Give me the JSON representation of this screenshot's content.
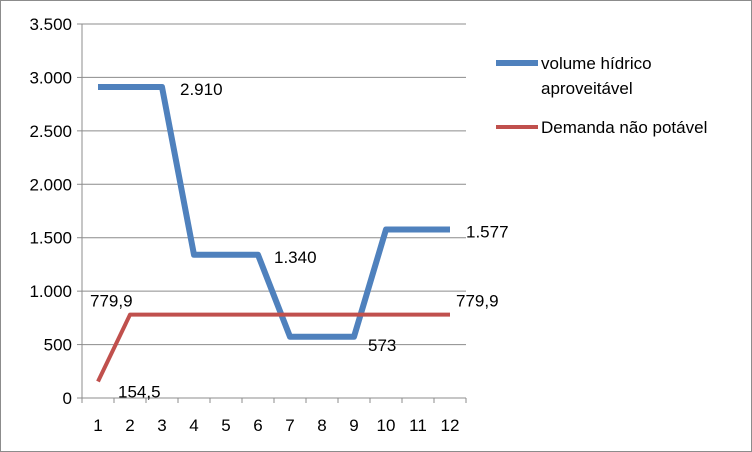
{
  "chart_data": {
    "type": "line",
    "title": "",
    "xlabel": "",
    "ylabel": "",
    "categories": [
      "1",
      "2",
      "3",
      "4",
      "5",
      "6",
      "7",
      "8",
      "9",
      "10",
      "11",
      "12"
    ],
    "ylim": [
      0,
      3500
    ],
    "y_ticks": [
      0,
      500,
      1000,
      1500,
      2000,
      2500,
      3000,
      3500
    ],
    "y_tick_labels": [
      "0",
      "500",
      "1.000",
      "1.500",
      "2.000",
      "2.500",
      "3.000",
      "3.500"
    ],
    "grid": "horizontal",
    "legend_position": "right",
    "series": [
      {
        "name_lines": [
          "volume hídrico",
          "aproveitável"
        ],
        "color": "#4f81bd",
        "values": [
          2910,
          2910,
          2910,
          1340,
          1340,
          1340,
          573,
          573,
          573,
          1577,
          1577,
          1577
        ],
        "data_labels": [
          {
            "index": 2,
            "text": "2.910"
          },
          {
            "index": 5,
            "text": "1.340"
          },
          {
            "index": 8,
            "text": "573"
          },
          {
            "index": 11,
            "text": "1.577"
          }
        ]
      },
      {
        "name_lines": [
          "Demanda não potável"
        ],
        "color": "#c0504d",
        "values": [
          154.5,
          779.9,
          779.9,
          779.9,
          779.9,
          779.9,
          779.9,
          779.9,
          779.9,
          779.9,
          779.9,
          779.9
        ],
        "data_labels": [
          {
            "index": 0,
            "text": "154,5"
          },
          {
            "index": 1,
            "text": "779,9"
          },
          {
            "index": 11,
            "text": "779,9"
          }
        ]
      }
    ]
  }
}
